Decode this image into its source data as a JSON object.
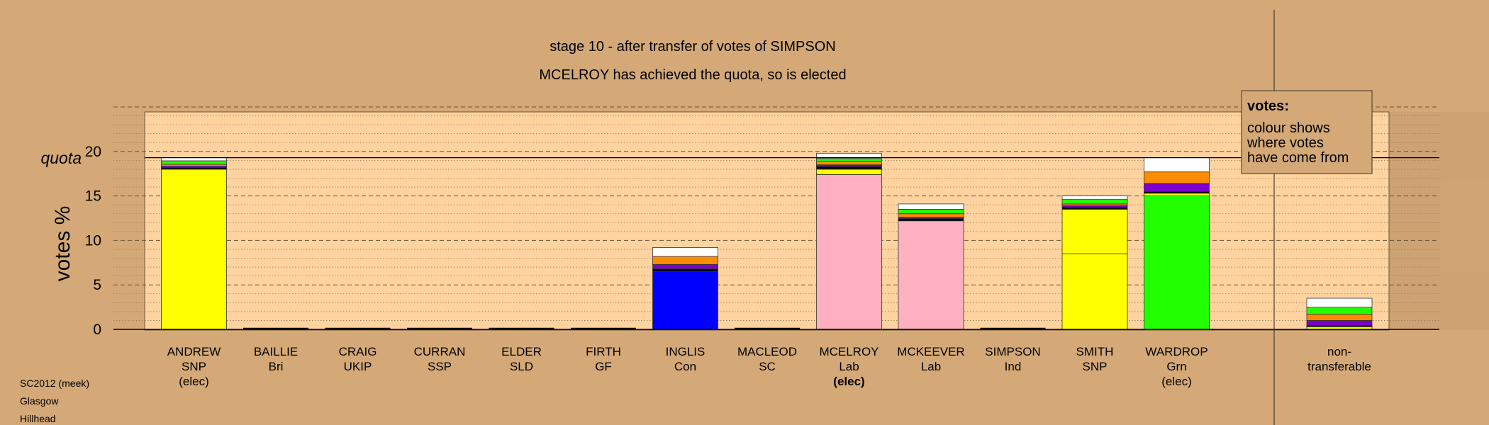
{
  "chart_data": {
    "type": "bar",
    "stacked": true,
    "title": "stage 10 - after transfer of votes of SIMPSON",
    "subtitle": "MCELROY has achieved the quota, so is elected",
    "ylabel": "votes %",
    "ylim": [
      0,
      25
    ],
    "yticks": [
      0,
      5,
      10,
      15,
      20
    ],
    "quota": 19.3,
    "quota_label": "quota",
    "grid": true,
    "legend": {
      "position": "top-right",
      "title": "votes:",
      "lines": [
        "colour shows",
        "where votes",
        "have come from"
      ]
    },
    "footer": [
      "SC2012 (meek)",
      "Glasgow",
      "Hillhead"
    ],
    "candidates": [
      {
        "name": "ANDREW",
        "party": "SNP",
        "note": "(elec)",
        "note_bold": false,
        "segments": [
          {
            "color": "#ffff00",
            "value": 18.0
          },
          {
            "color": "#000000",
            "value": 0.2
          },
          {
            "color": "#7b00cc",
            "value": 0.15
          },
          {
            "color": "#ff8c00",
            "value": 0.2
          },
          {
            "color": "#22ff00",
            "value": 0.4
          },
          {
            "color": "#ffffff",
            "value": 0.35
          }
        ]
      },
      {
        "name": "BAILLIE",
        "party": "Bri",
        "note": "",
        "note_bold": false,
        "segments": []
      },
      {
        "name": "CRAIG",
        "party": "UKIP",
        "note": "",
        "note_bold": false,
        "segments": []
      },
      {
        "name": "CURRAN",
        "party": "SSP",
        "note": "",
        "note_bold": false,
        "segments": []
      },
      {
        "name": "ELDER",
        "party": "SLD",
        "note": "",
        "note_bold": false,
        "segments": []
      },
      {
        "name": "FIRTH",
        "party": "GF",
        "note": "",
        "note_bold": false,
        "segments": []
      },
      {
        "name": "INGLIS",
        "party": "Con",
        "note": "",
        "note_bold": false,
        "segments": [
          {
            "color": "#0000ff",
            "value": 6.5
          },
          {
            "color": "#000000",
            "value": 0.3
          },
          {
            "color": "#7b00cc",
            "value": 0.5
          },
          {
            "color": "#ff8c00",
            "value": 0.9
          },
          {
            "color": "#ffffff",
            "value": 1.0
          }
        ]
      },
      {
        "name": "MACLEOD",
        "party": "SC",
        "note": "",
        "note_bold": false,
        "segments": []
      },
      {
        "name": "MCELROY",
        "party": "Lab",
        "note": "(elec)",
        "note_bold": true,
        "segments": [
          {
            "color": "#ffb0c0",
            "value": 17.4
          },
          {
            "color": "#ffff00",
            "value": 0.6
          },
          {
            "color": "#000000",
            "value": 0.3
          },
          {
            "color": "#7b00cc",
            "value": 0.2
          },
          {
            "color": "#ff8c00",
            "value": 0.4
          },
          {
            "color": "#22ff00",
            "value": 0.3
          },
          {
            "color": "#ffffff",
            "value": 0.6
          }
        ]
      },
      {
        "name": "MCKEEVER",
        "party": "Lab",
        "note": "",
        "note_bold": false,
        "segments": [
          {
            "color": "#ffb0c0",
            "value": 12.2
          },
          {
            "color": "#000000",
            "value": 0.25
          },
          {
            "color": "#7b00cc",
            "value": 0.15
          },
          {
            "color": "#ff8c00",
            "value": 0.4
          },
          {
            "color": "#22ff00",
            "value": 0.5
          },
          {
            "color": "#ffffff",
            "value": 0.6
          }
        ]
      },
      {
        "name": "SIMPSON",
        "party": "Ind",
        "note": "",
        "note_bold": false,
        "segments": []
      },
      {
        "name": "SMITH",
        "party": "SNP",
        "note": "",
        "note_bold": false,
        "segments": [
          {
            "color": "#ffff00",
            "value": 8.5
          },
          {
            "color": "#ffff00",
            "value": 5.0
          },
          {
            "color": "#000000",
            "value": 0.25
          },
          {
            "color": "#7b00cc",
            "value": 0.15
          },
          {
            "color": "#ff8c00",
            "value": 0.2
          },
          {
            "color": "#22ff00",
            "value": 0.5
          },
          {
            "color": "#ffffff",
            "value": 0.4
          }
        ]
      },
      {
        "name": "WARDROP",
        "party": "Grn",
        "note": "(elec)",
        "note_bold": false,
        "segments": [
          {
            "color": "#22ff00",
            "value": 15.0
          },
          {
            "color": "#ffff00",
            "value": 0.3
          },
          {
            "color": "#000000",
            "value": 0.2
          },
          {
            "color": "#7b00cc",
            "value": 0.9
          },
          {
            "color": "#ff8c00",
            "value": 1.3
          },
          {
            "color": "#ffffff",
            "value": 1.6
          }
        ]
      }
    ],
    "nontransferable": {
      "name": "non-",
      "party": "transferable",
      "segments": [
        {
          "color": "#ffff00",
          "value": 0.3
        },
        {
          "color": "#000000",
          "value": 0.15
        },
        {
          "color": "#7b00cc",
          "value": 0.55
        },
        {
          "color": "#ff8c00",
          "value": 0.7
        },
        {
          "color": "#22ff00",
          "value": 0.8
        },
        {
          "color": "#ffffff",
          "value": 1.0
        }
      ]
    }
  }
}
